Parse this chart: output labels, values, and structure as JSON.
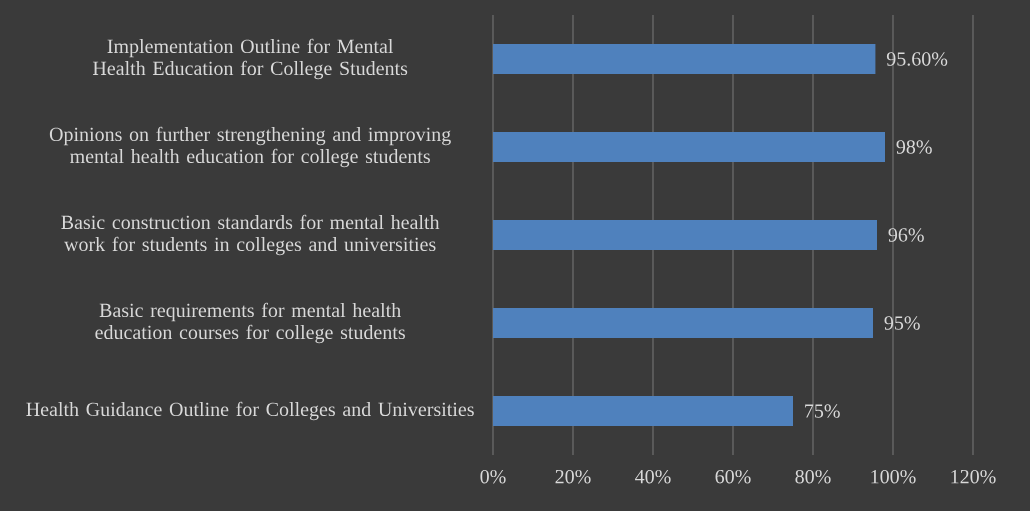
{
  "chart_data": {
    "type": "bar",
    "orientation": "horizontal",
    "categories": [
      "Implementation Outline for Mental Health Education for College Students",
      "Opinions on further strengthening and improving mental health education for college students",
      "Basic construction standards for mental health work for students in colleges and universities",
      "Basic requirements for mental health education courses for college students",
      "Health Guidance Outline for Colleges and Universities"
    ],
    "values": [
      95.6,
      98,
      96,
      95,
      75
    ],
    "value_labels": [
      "95.60%",
      "98%",
      "96%",
      "95%",
      "75%"
    ],
    "color": "#4f81bd",
    "xlim": [
      0,
      120
    ],
    "xticks": [
      {
        "value": 0,
        "label": "0%"
      },
      {
        "value": 20,
        "label": "20%"
      },
      {
        "value": 40,
        "label": "40%"
      },
      {
        "value": 60,
        "label": "60%"
      },
      {
        "value": 80,
        "label": "80%"
      },
      {
        "value": 100,
        "label": "100%"
      },
      {
        "value": 120,
        "label": "120%"
      }
    ],
    "grid": "x"
  }
}
